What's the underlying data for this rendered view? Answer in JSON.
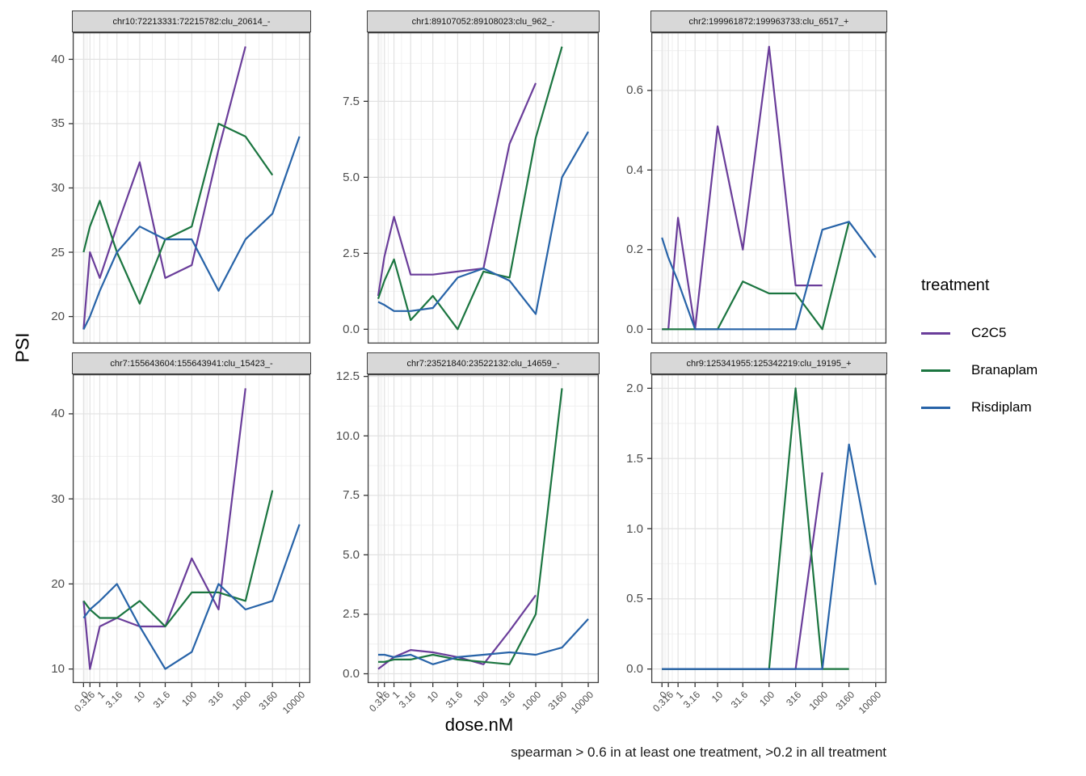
{
  "figure": {
    "y_axis_label": "PSI",
    "x_axis_label": "dose.nM",
    "caption": "spearman > 0.6 in at least one treatment, >0.2 in all treatment"
  },
  "legend": {
    "title": "treatment",
    "items": [
      {
        "label": "C2C5",
        "color": "#6a3d9a"
      },
      {
        "label": "Branaplam",
        "color": "#1b7540"
      },
      {
        "label": "Risdiplam",
        "color": "#2763a8"
      }
    ]
  },
  "chart_data": {
    "type": "line",
    "facet_by": "splice junction cluster",
    "x": [
      0,
      0.316,
      1,
      3.16,
      10,
      31.6,
      100,
      316,
      1000,
      3160,
      10000
    ],
    "x_tick_labels": [
      "0",
      "0.316",
      "1",
      "3.16",
      "10",
      "31.6",
      "100",
      "316",
      "1000",
      "3160",
      "10000"
    ],
    "x_scale": "log10(dose+1)",
    "xlim_log": [
      -0.2,
      4.2
    ],
    "minor_x_doses": [
      0.0316,
      0.1,
      0.178,
      0.562,
      1.78,
      5.62,
      17.8,
      56.2,
      178,
      562,
      1780,
      5620
    ],
    "grid": true,
    "colors": {
      "major_grid": "#e2e2e2",
      "minor_grid": "#f0f0f0",
      "panel_border": "#3f3f3f",
      "tick": "#333333",
      "strip_fill": "#d8d8d8"
    },
    "panels": [
      {
        "title": "chr10:72213331:72215782:clu_20614_-",
        "yticks": [
          20,
          25,
          30,
          35,
          40
        ],
        "ytick_labels": [
          "20",
          "25",
          "30",
          "35",
          "40"
        ],
        "ylim": [
          17.9,
          42.1
        ],
        "series": {
          "C2C5": [
            19,
            25,
            23,
            27,
            32,
            23,
            24,
            33,
            41,
            null,
            null
          ],
          "Branaplam": [
            25,
            27,
            29,
            25,
            21,
            26,
            27,
            35,
            34,
            31,
            null
          ],
          "Risdiplam": [
            19,
            20,
            22,
            25,
            27,
            26,
            26,
            22,
            26,
            28,
            34
          ]
        }
      },
      {
        "title": "chr1:89107052:89108023:clu_962_-",
        "yticks": [
          0,
          2.5,
          5,
          7.5
        ],
        "ytick_labels": [
          "0.0",
          "2.5",
          "5.0",
          "7.5"
        ],
        "ylim": [
          -0.47,
          9.77
        ],
        "series": {
          "C2C5": [
            1.1,
            2.4,
            3.7,
            1.8,
            1.8,
            1.9,
            2.0,
            6.1,
            8.1,
            null,
            null
          ],
          "Branaplam": [
            1.0,
            1.6,
            2.3,
            0.3,
            1.1,
            0.0,
            1.9,
            1.7,
            6.3,
            9.3,
            null
          ],
          "Risdiplam": [
            0.9,
            0.8,
            0.6,
            0.6,
            0.7,
            1.7,
            2.0,
            1.6,
            0.5,
            5.0,
            6.5
          ]
        }
      },
      {
        "title": "chr2:199961872:199963733:clu_6517_+",
        "yticks": [
          0,
          0.2,
          0.4,
          0.6
        ],
        "ytick_labels": [
          "0.0",
          "0.2",
          "0.4",
          "0.6"
        ],
        "ylim": [
          -0.036,
          0.746
        ],
        "series": {
          "C2C5": [
            0,
            0,
            0.28,
            0,
            0.51,
            0.2,
            0.71,
            0.11,
            0.11,
            null,
            null
          ],
          "Branaplam": [
            0,
            0,
            0,
            0,
            0,
            0.12,
            0.09,
            0.09,
            0,
            0.27,
            null
          ],
          "Risdiplam": [
            0.23,
            0.18,
            0.12,
            0,
            0,
            0,
            0,
            0,
            0.25,
            0.27,
            0.18
          ]
        }
      },
      {
        "title": "chr7:155643604:155643941:clu_15423_-",
        "yticks": [
          10,
          20,
          30,
          40
        ],
        "ytick_labels": [
          "10",
          "20",
          "30",
          "40"
        ],
        "ylim": [
          8.35,
          44.65
        ],
        "series": {
          "C2C5": [
            18,
            10,
            15,
            16,
            15,
            15,
            23,
            17,
            43,
            null,
            null
          ],
          "Branaplam": [
            18,
            17,
            16,
            16,
            18,
            15,
            19,
            19,
            18,
            31,
            null
          ],
          "Risdiplam": [
            16,
            17,
            18,
            20,
            15,
            10,
            12,
            20,
            17,
            18,
            27
          ]
        }
      },
      {
        "title": "chr7:23521840:23522132:clu_14659_-",
        "yticks": [
          0,
          2.5,
          5,
          7.5,
          10,
          12.5
        ],
        "ytick_labels": [
          "0.0",
          "2.5",
          "5.0",
          "7.5",
          "10.0",
          "12.5"
        ],
        "ylim": [
          -0.39,
          12.59
        ],
        "series": {
          "C2C5": [
            0.2,
            0.4,
            0.7,
            1.0,
            0.9,
            0.7,
            0.4,
            1.8,
            3.3,
            null,
            null
          ],
          "Branaplam": [
            0.5,
            0.5,
            0.6,
            0.6,
            0.8,
            0.6,
            0.5,
            0.4,
            2.5,
            12.0,
            null
          ],
          "Risdiplam": [
            0.8,
            0.8,
            0.7,
            0.8,
            0.4,
            0.7,
            0.8,
            0.9,
            0.8,
            1.1,
            2.3
          ]
        }
      },
      {
        "title": "chr9:125341955:125342219:clu_19195_+",
        "yticks": [
          0,
          0.5,
          1,
          1.5,
          2
        ],
        "ytick_labels": [
          "0.0",
          "0.5",
          "1.0",
          "1.5",
          "2.0"
        ],
        "ylim": [
          -0.1,
          2.1
        ],
        "series": {
          "C2C5": [
            0,
            0,
            0,
            0,
            0,
            0,
            0,
            0,
            1.4,
            null,
            null
          ],
          "Branaplam": [
            0,
            0,
            0,
            0,
            0,
            0,
            0,
            2.0,
            0,
            0,
            null
          ],
          "Risdiplam": [
            0,
            0,
            0,
            0,
            0,
            0,
            0,
            0,
            0,
            1.6,
            0.6
          ]
        }
      }
    ]
  }
}
